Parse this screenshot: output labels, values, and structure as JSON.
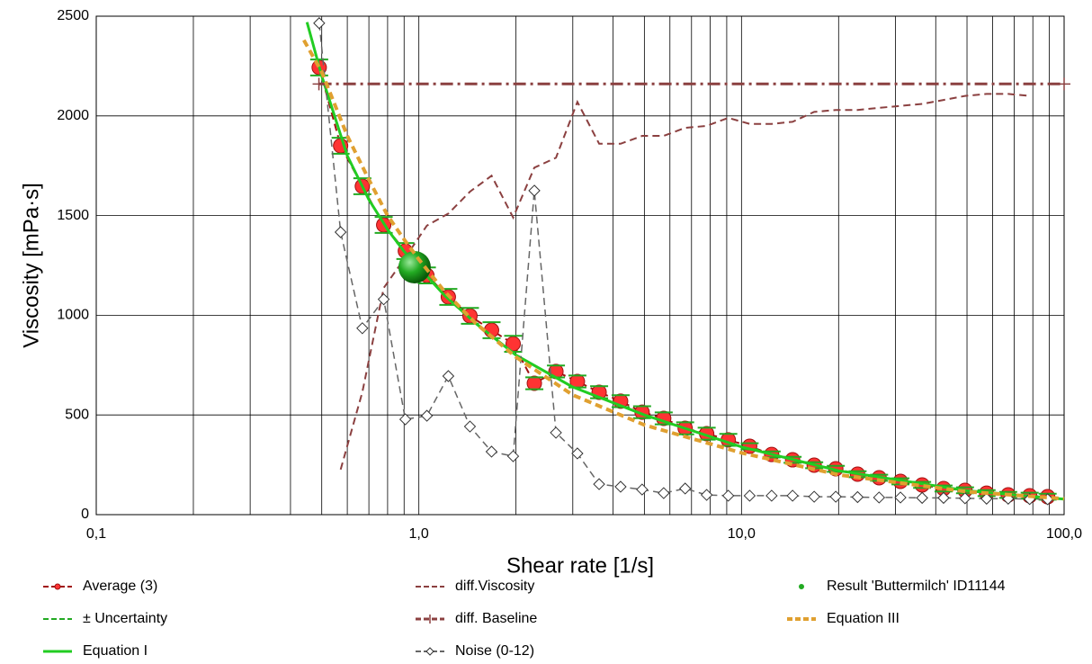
{
  "chart_data": {
    "type": "line",
    "x_label": "Shear rate  [1/s]",
    "y_label": "Viscosity [mPa·s]",
    "xscale": "log",
    "xlim": [
      0.1,
      100
    ],
    "xticks": [
      {
        "value": 0.1,
        "label": "0,1"
      },
      {
        "value": 1,
        "label": "1,0"
      },
      {
        "value": 10,
        "label": "10,0"
      },
      {
        "value": 100,
        "label": "100,0"
      }
    ],
    "xminorticks": [
      0.2,
      0.3,
      0.4,
      0.5,
      0.6,
      0.7,
      0.8,
      0.9,
      2,
      3,
      4,
      5,
      6,
      7,
      8,
      9,
      20,
      30,
      40,
      50,
      60,
      70,
      80,
      90
    ],
    "ylim": [
      0,
      2500
    ],
    "yticks": [
      0,
      500,
      1000,
      1500,
      2000,
      2500
    ],
    "grid": true,
    "legend": "bottom",
    "x": [
      0.491,
      0.572,
      0.668,
      0.778,
      0.908,
      1.059,
      1.234,
      1.44,
      1.68,
      1.96,
      2.28,
      2.66,
      3.1,
      3.62,
      4.22,
      4.92,
      5.74,
      6.69,
      7.8,
      9.1,
      10.6,
      12.4,
      14.4,
      16.8,
      19.6,
      22.9,
      26.7,
      31.1,
      36.3,
      42.3,
      49.3,
      57.5,
      67.1,
      78.2,
      88.9
    ],
    "series": [
      {
        "name": "Average (3)",
        "color": "#a01010",
        "marker_color": "#ff3333",
        "style": "dashed",
        "width": 2,
        "marker": "circle",
        "values": [
          2243,
          1850,
          1647,
          1453,
          1322,
          1200,
          1092,
          997,
          925,
          857,
          659,
          718,
          668,
          614,
          569,
          514,
          483,
          433,
          406,
          375,
          343,
          302,
          275,
          248,
          230,
          203,
          185,
          167,
          149,
          131,
          122,
          108,
          99,
          95,
          90
        ]
      },
      {
        "name": "± Uncertainty",
        "color": "#22aa22",
        "style": "dashed",
        "width": 2,
        "marker": "errorbar",
        "values": [
          40,
          40,
          40,
          40,
          40,
          40,
          40,
          40,
          40,
          40,
          30,
          30,
          30,
          30,
          30,
          30,
          30,
          30,
          30,
          30,
          15,
          15,
          15,
          15,
          15,
          15,
          15,
          15,
          15,
          15,
          15,
          15,
          15,
          15,
          15
        ]
      },
      {
        "name": "Equation I",
        "color": "#22cc22",
        "style": "solid",
        "width": 3,
        "marker": "none",
        "x": [
          0.45,
          0.5,
          0.6,
          0.7,
          0.8,
          0.9,
          1,
          1.2,
          1.5,
          2,
          3,
          5,
          10,
          20,
          50,
          100
        ],
        "values": [
          2470,
          2200,
          1800,
          1580,
          1430,
          1320,
          1240,
          1100,
          960,
          800,
          640,
          500,
          340,
          220,
          120,
          78
        ]
      },
      {
        "name": "diff.Viscosity",
        "color": "#8b4040",
        "style": "dashed",
        "width": 2,
        "marker": "none",
        "values": [
          null,
          226,
          614,
          1137,
          1290,
          1450,
          1510,
          1620,
          1700,
          1490,
          1740,
          1790,
          2070,
          1860,
          1860,
          1900,
          1900,
          1940,
          1950,
          1990,
          1960,
          1960,
          1970,
          2020,
          2030,
          2030,
          2040,
          2050,
          2060,
          2080,
          2100,
          2110,
          2110,
          2100,
          null
        ]
      },
      {
        "name": "diff. Baseline",
        "color": "#8b4040",
        "style": "dashdot",
        "width": 3,
        "marker": "plus",
        "x": [
          0.49,
          100
        ],
        "values": [
          2160,
          2160
        ]
      },
      {
        "name": "Noise (0-12)",
        "color": "#666666",
        "style": "dashed",
        "width": 1.5,
        "marker": "diamond",
        "values": [
          2465,
          1417,
          935,
          1080,
          478,
          496,
          695,
          442,
          316,
          293,
          1625,
          411,
          307,
          153,
          140,
          126,
          108,
          131,
          99,
          95,
          95,
          95,
          95,
          90,
          90,
          88,
          86,
          86,
          84,
          84,
          82,
          80,
          80,
          78,
          77
        ]
      },
      {
        "name": "Result 'Buttermilch' ID11144",
        "color": "#22aa22",
        "style": "none",
        "width": 0,
        "marker": "ball",
        "x": [
          0.97
        ],
        "values": [
          1241
        ]
      },
      {
        "name": "Equation III",
        "color": "#e0a030",
        "style": "dashed",
        "width": 4,
        "marker": "none",
        "x": [
          0.44,
          0.5,
          0.6,
          0.7,
          0.8,
          0.9,
          1,
          1.2,
          1.5,
          2,
          3,
          5,
          10,
          20,
          50,
          100
        ],
        "values": [
          2380,
          2220,
          1900,
          1680,
          1500,
          1380,
          1280,
          1120,
          960,
          790,
          600,
          450,
          310,
          200,
          115,
          80
        ]
      }
    ]
  }
}
